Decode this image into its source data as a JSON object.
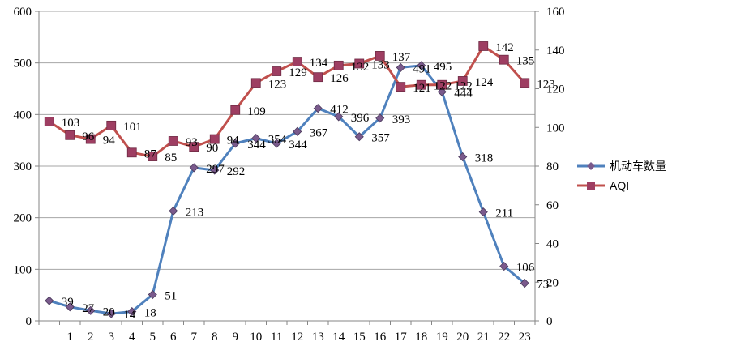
{
  "chart_data": {
    "type": "line",
    "x": [
      "",
      "1",
      "2",
      "3",
      "4",
      "5",
      "6",
      "7",
      "8",
      "9",
      "10",
      "11",
      "12",
      "13",
      "14",
      "15",
      "16",
      "17",
      "18",
      "19",
      "20",
      "21",
      "22",
      "23"
    ],
    "series": [
      {
        "name": "机动车数量",
        "axis": "left",
        "color": "#4f81bd",
        "marker": "diamond",
        "values": [
          39,
          27,
          20,
          14,
          18,
          51,
          213,
          297,
          292,
          344,
          354,
          344,
          367,
          412,
          396,
          357,
          393,
          491,
          495,
          444,
          318,
          211,
          106,
          73
        ]
      },
      {
        "name": "AQI",
        "axis": "right",
        "color": "#c0504d",
        "marker": "square",
        "values": [
          103,
          96,
          94,
          101,
          87,
          85,
          93,
          90,
          94,
          109,
          123,
          129,
          134,
          126,
          132,
          133,
          137,
          121,
          122,
          122,
          124,
          142,
          135,
          123
        ]
      }
    ],
    "y_left": {
      "min": 0,
      "max": 600,
      "ticks": [
        0,
        100,
        200,
        300,
        400,
        500,
        600
      ]
    },
    "y_right": {
      "min": 0,
      "max": 160,
      "ticks": [
        0,
        20,
        40,
        60,
        80,
        100,
        120,
        140,
        160
      ]
    },
    "grid": true,
    "legend": "right"
  }
}
